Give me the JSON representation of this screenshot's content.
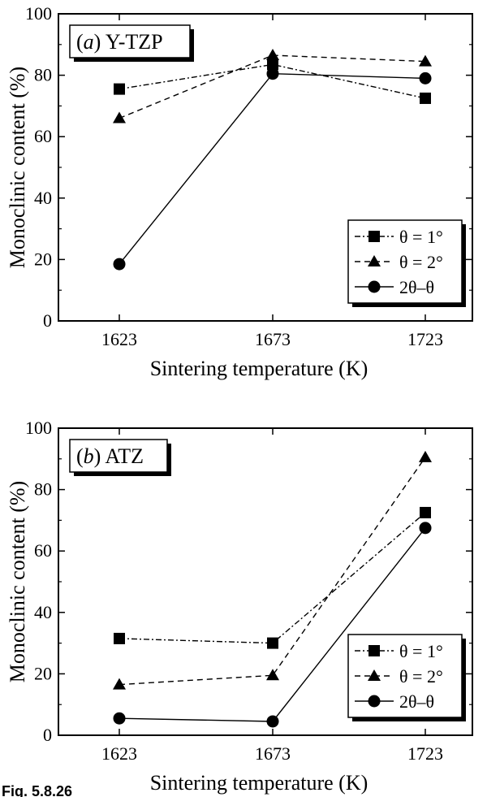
{
  "figure_caption": "Fig. 5.8.26",
  "chart_data": [
    {
      "type": "line",
      "panel_letter": "a",
      "panel_material": "Y-TZP",
      "xlabel": "Sintering temperature (K)",
      "ylabel": "Monoclinic content (%)",
      "categories": [
        "1623",
        "1673",
        "1723"
      ],
      "ylim": [
        0,
        100
      ],
      "yticks": [
        0,
        20,
        40,
        60,
        80,
        100
      ],
      "grid": false,
      "legend_position": "bottom-right",
      "series": [
        {
          "name": "θ = 1°",
          "marker": "square",
          "dash": "dash-dot",
          "values": [
            75.5,
            83.5,
            72.5
          ]
        },
        {
          "name": "θ = 2°",
          "marker": "triangle",
          "dash": "dashed",
          "values": [
            66,
            86.5,
            84.5
          ]
        },
        {
          "name": "2θ–θ",
          "marker": "circle",
          "dash": "solid",
          "values": [
            18.5,
            80.5,
            79
          ]
        }
      ]
    },
    {
      "type": "line",
      "panel_letter": "b",
      "panel_material": "ATZ",
      "xlabel": "Sintering temperature (K)",
      "ylabel": "Monoclinic content (%)",
      "categories": [
        "1623",
        "1673",
        "1723"
      ],
      "ylim": [
        0,
        100
      ],
      "yticks": [
        0,
        20,
        40,
        60,
        80,
        100
      ],
      "grid": false,
      "legend_position": "bottom-right",
      "series": [
        {
          "name": "θ = 1°",
          "marker": "square",
          "dash": "dash-dot",
          "values": [
            31.5,
            30,
            72.5
          ]
        },
        {
          "name": "θ = 2°",
          "marker": "triangle",
          "dash": "dashed",
          "values": [
            16.5,
            19.5,
            90.5
          ]
        },
        {
          "name": "2θ–θ",
          "marker": "circle",
          "dash": "solid",
          "values": [
            5.5,
            4.5,
            67.5
          ]
        }
      ]
    }
  ]
}
